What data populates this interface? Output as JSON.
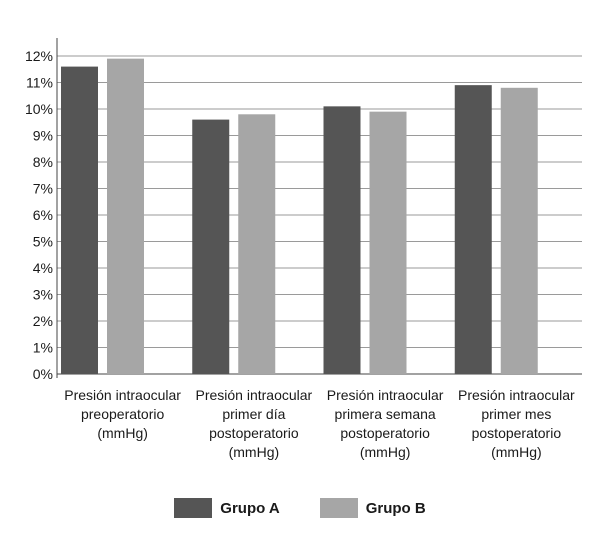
{
  "chart_data": {
    "type": "bar",
    "categories": [
      [
        "Presión intraocular",
        "preoperatorio",
        "(mmHg)"
      ],
      [
        "Presión intraocular",
        "primer día",
        "postoperatorio",
        "(mmHg)"
      ],
      [
        "Presión intraocular",
        "primera semana",
        "postoperatorio",
        "(mmHg)"
      ],
      [
        "Presión intraocular",
        "primer mes",
        "postoperatorio",
        "(mmHg)"
      ]
    ],
    "series": [
      {
        "name": "Grupo A",
        "color": "#555555",
        "values": [
          11.6,
          9.6,
          10.1,
          10.9
        ]
      },
      {
        "name": "Grupo B",
        "color": "#a6a6a6",
        "values": [
          11.9,
          9.8,
          9.9,
          10.8
        ]
      }
    ],
    "yticks": [
      "0%",
      "1%",
      "2%",
      "3%",
      "4%",
      "5%",
      "6%",
      "7%",
      "8%",
      "9%",
      "10%",
      "11%",
      "12%"
    ],
    "ylim": [
      0,
      12
    ],
    "grid": true,
    "legend_position": "bottom-center",
    "title": "",
    "xlabel": "",
    "ylabel": ""
  }
}
